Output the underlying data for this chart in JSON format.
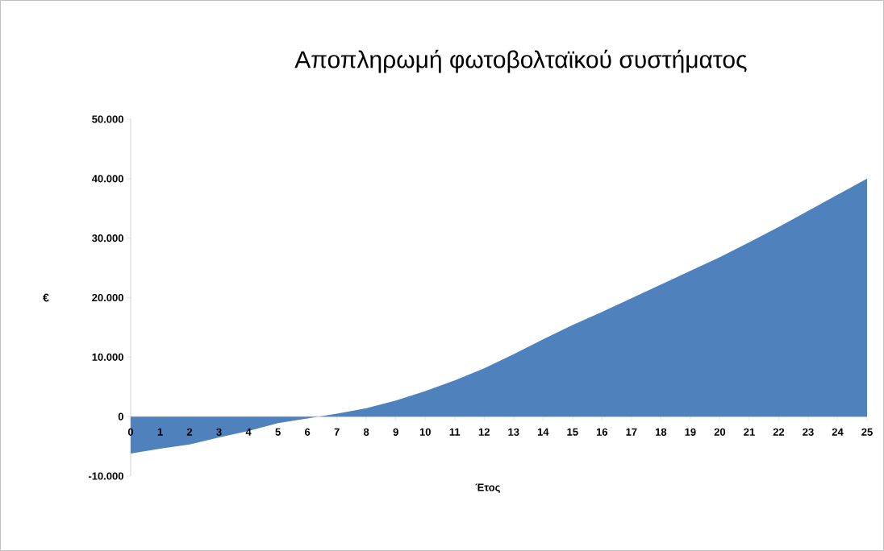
{
  "chart_data": {
    "type": "area",
    "title": "Αποπληρωμή φωτοβολταϊκού συστήματος",
    "xlabel": "Έτος",
    "ylabel": "€",
    "categories": [
      "0",
      "1",
      "2",
      "3",
      "4",
      "5",
      "6",
      "7",
      "8",
      "9",
      "10",
      "11",
      "12",
      "13",
      "14",
      "15",
      "16",
      "17",
      "18",
      "19",
      "20",
      "21",
      "22",
      "23",
      "24",
      "25"
    ],
    "values": [
      -6200,
      -5400,
      -4700,
      -3500,
      -2400,
      -1100,
      -300,
      500,
      1400,
      2700,
      4300,
      6100,
      8100,
      10500,
      13000,
      15400,
      17600,
      19900,
      22200,
      24500,
      26800,
      29300,
      31900,
      34600,
      37300,
      40000
    ],
    "color": "#4f81bd",
    "ylim": [
      -10000,
      50000
    ],
    "yticks": [
      {
        "value": -10000,
        "label": "-10.000"
      },
      {
        "value": 0,
        "label": "0"
      },
      {
        "value": 10000,
        "label": "10.000"
      },
      {
        "value": 20000,
        "label": "20.000"
      },
      {
        "value": 30000,
        "label": "30.000"
      },
      {
        "value": 40000,
        "label": "40.000"
      },
      {
        "value": 50000,
        "label": "50.000"
      }
    ],
    "grid": false
  }
}
